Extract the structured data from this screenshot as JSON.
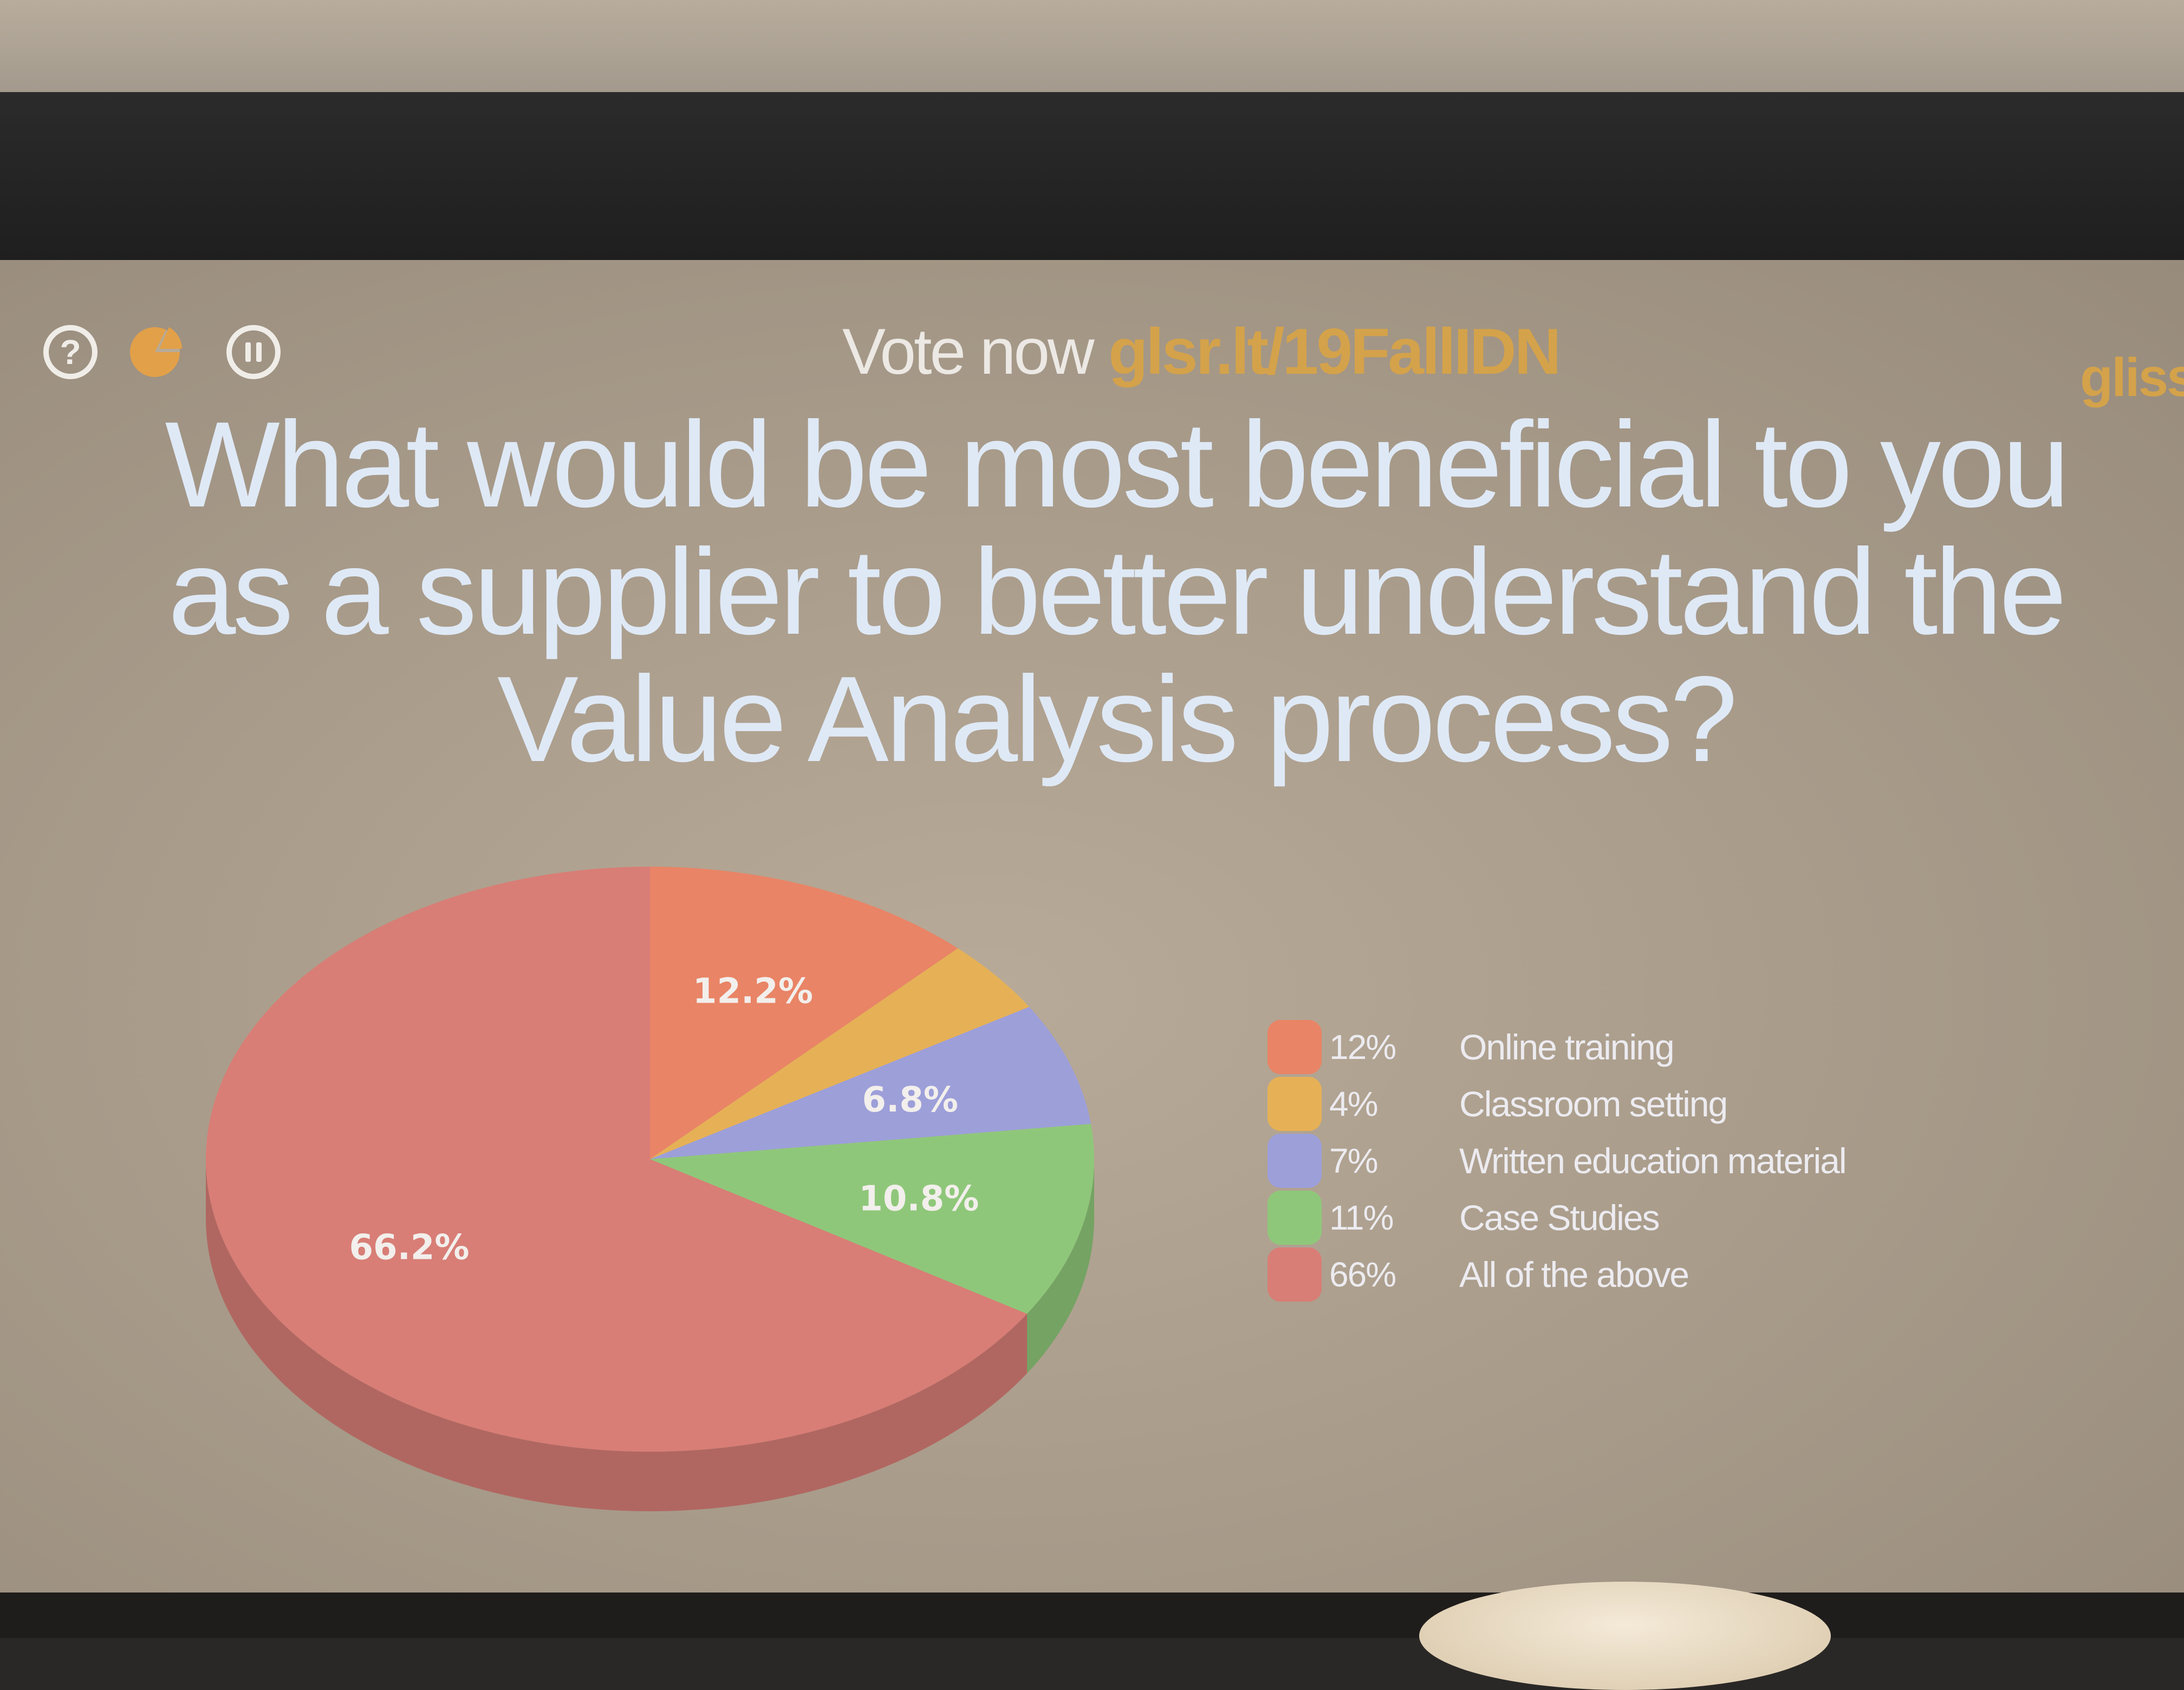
{
  "header": {
    "vote_now": "Vote now",
    "vote_url": "glsr.lt/19FallIDN",
    "brand": "glisse"
  },
  "icons": {
    "help": "question-circle-icon",
    "results": "pie-results-icon",
    "pause": "pause-circle-icon",
    "help_symbol": "?"
  },
  "question": "What would be most beneficial to you as a supplier to better understand the Value Analysis process?",
  "colors": {
    "online_training": "#e98466",
    "classroom_setting": "#e6b156",
    "written_education": "#9d9fd9",
    "case_studies": "#8fc77a",
    "all_of_the_above": "#d87e76",
    "accent": "#d4a24a",
    "question_text": "#dfe9f6"
  },
  "chart_data": {
    "type": "pie",
    "title": "",
    "categories": [
      "Online training",
      "Classroom setting",
      "Written education material",
      "Case Studies",
      "All of the above"
    ],
    "values": [
      12.2,
      4.1,
      6.8,
      10.8,
      66.2
    ],
    "slice_labels": [
      "12.2%",
      "",
      "6.8%",
      "10.8%",
      "66.2%"
    ],
    "legend_percent": [
      "12%",
      "4%",
      "7%",
      "11%",
      "66%"
    ],
    "legend_position": "right",
    "colors": [
      "#e98466",
      "#e6b156",
      "#9d9fd9",
      "#8fc77a",
      "#d87e76"
    ]
  }
}
